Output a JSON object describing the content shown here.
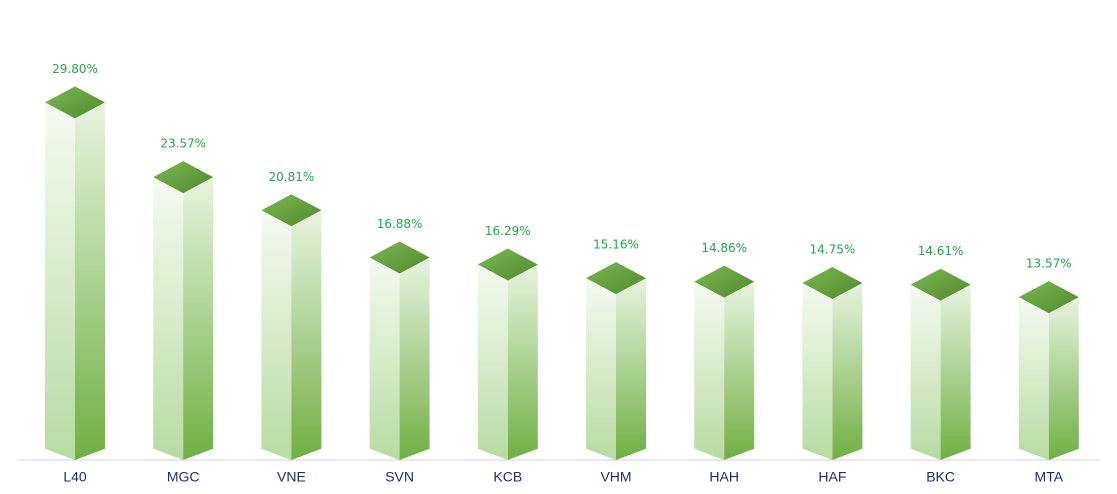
{
  "chart_data": {
    "type": "bar3d",
    "categories": [
      "L40",
      "MGC",
      "VNE",
      "SVN",
      "KCB",
      "VHM",
      "HAH",
      "HAF",
      "BKC",
      "MTA"
    ],
    "values": [
      29.8,
      23.57,
      20.81,
      16.88,
      16.29,
      15.16,
      14.86,
      14.75,
      14.61,
      13.57
    ],
    "value_labels": [
      "29.80%",
      "23.57%",
      "20.81%",
      "16.88%",
      "16.29%",
      "15.16%",
      "14.86%",
      "14.75%",
      "14.61%",
      "13.57%"
    ],
    "color": "#6aaa3a"
  }
}
